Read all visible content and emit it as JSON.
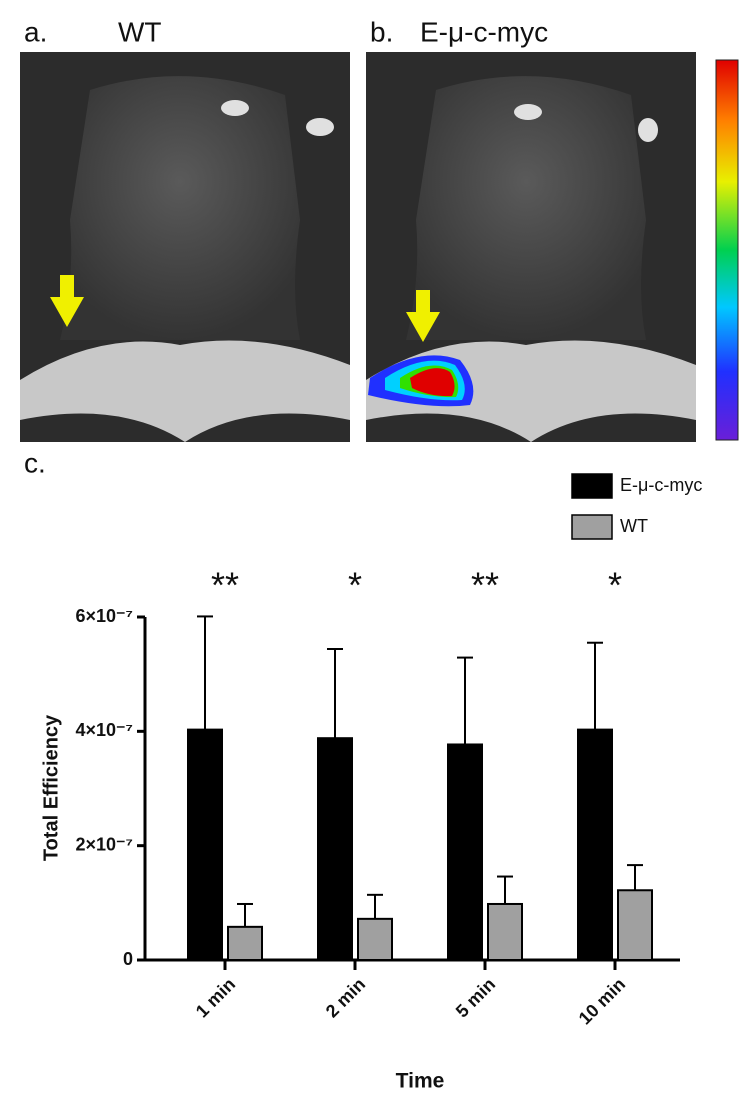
{
  "panel_labels": {
    "a": "a.",
    "a_title": "WT",
    "b": "b.",
    "b_title": "E-μ-c-myc",
    "c": "c."
  },
  "chart_data": {
    "type": "bar",
    "y_label": "Total Efficiency",
    "x_label": "Time",
    "categories": [
      "1 min",
      "2 min",
      "5 min",
      "10 min"
    ],
    "series": [
      {
        "name": "E-μ-c-myc",
        "color": "#000000",
        "values": [
          4.03e-07,
          3.88e-07,
          3.77e-07,
          4.03e-07
        ],
        "errors": [
          1.98e-07,
          1.56e-07,
          1.52e-07,
          1.52e-07
        ]
      },
      {
        "name": "WT",
        "color": "#a0a0a0",
        "values": [
          5.8e-08,
          7.2e-08,
          9.8e-08,
          1.22e-07
        ],
        "errors": [
          4e-08,
          4.2e-08,
          4.8e-08,
          4.4e-08
        ]
      }
    ],
    "annotations": [
      "**",
      "*",
      "**",
      "*"
    ],
    "ylim": [
      0,
      6e-07
    ],
    "yticks": [
      {
        "value": 0,
        "label": "0"
      },
      {
        "value": 2e-07,
        "label": "2×10⁻⁷"
      },
      {
        "value": 4e-07,
        "label": "4×10⁻⁷"
      },
      {
        "value": 6e-07,
        "label": "6×10⁻⁷"
      }
    ],
    "grid": false,
    "legend": "top-right"
  }
}
